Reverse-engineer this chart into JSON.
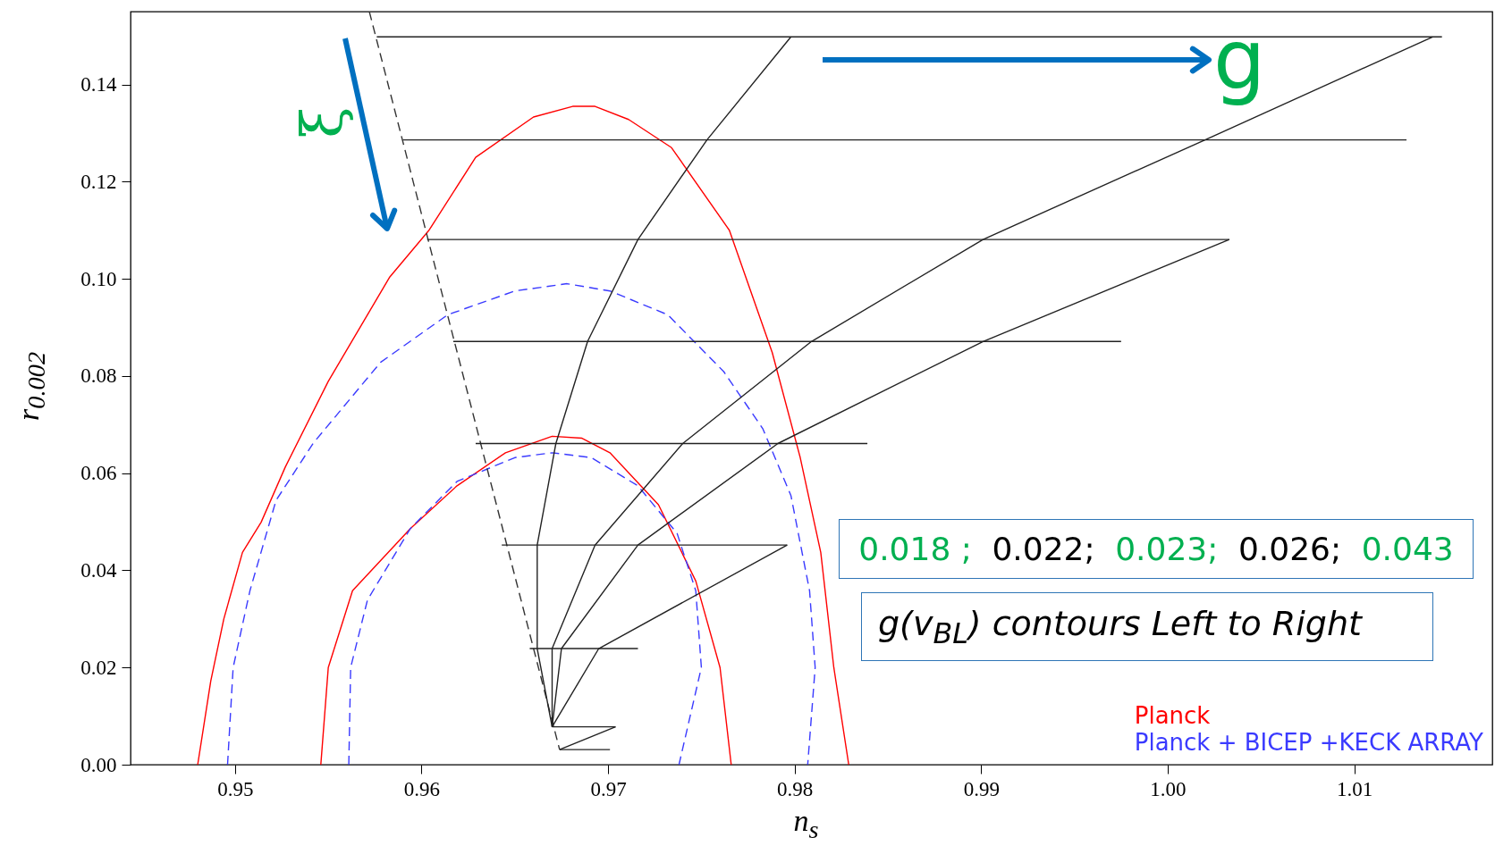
{
  "chart_data": {
    "type": "line",
    "xlabel": "n$_{s}$",
    "ylabel": "r$_{0.002}$",
    "xlim": [
      0.9444,
      1.0174
    ],
    "ylim": [
      0,
      0.155
    ],
    "xticks": [
      0.95,
      0.96,
      0.97,
      0.98,
      0.99,
      {
        "value": 1,
        "label": "1.00"
      },
      1.01
    ],
    "yticks": [
      {
        "value": 0,
        "label": "0.00"
      },
      0.02,
      0.04,
      0.06,
      0.08,
      {
        "value": 0.1,
        "label": "0.10"
      },
      0.12,
      0.14
    ],
    "legend": "bottom right",
    "annotations": [
      "ξ",
      "g",
      "0.018 ;",
      "0.022;",
      "0.023;",
      "0.026;",
      "0.043",
      "g(v$_{BL}$) contours Left to Right"
    ],
    "series": [
      {
        "name": "Planck",
        "color": "#ff0000",
        "line_style": "solid",
        "x": [
          0.948,
          0.9487,
          0.9494,
          0.9504,
          0.9514,
          0.9527,
          0.955,
          0.9583,
          0.9604,
          0.9629,
          0.966,
          0.9681,
          0.9693,
          0.9711,
          0.9734,
          0.9765,
          0.9788,
          0.9803,
          0.9814,
          0.9821,
          0.9829
        ],
        "values": [
          0,
          0.0172,
          0.03,
          0.0437,
          0.0499,
          0.0613,
          0.0789,
          0.1004,
          0.11,
          0.125,
          0.1333,
          0.1355,
          0.1355,
          0.1328,
          0.127,
          0.11,
          0.0848,
          0.0632,
          0.0437,
          0.02,
          0
        ]
      },
      {
        "color": "#ff0000",
        "line_style": "solid",
        "x": [
          0.9546,
          0.955,
          0.9563,
          0.9594,
          0.9619,
          0.9645,
          0.967,
          0.9686,
          0.9701,
          0.9727,
          0.9747,
          0.976,
          0.9766
        ],
        "values": [
          0,
          0.02,
          0.0358,
          0.0486,
          0.0574,
          0.0642,
          0.0676,
          0.0672,
          0.0642,
          0.0535,
          0.0378,
          0.02,
          0
        ]
      },
      {
        "name": "Planck + BICEP +KECK ARRAY",
        "color": "#3a3aff",
        "line_style": "dashed",
        "x": [
          0.9496,
          0.9499,
          0.9508,
          0.9522,
          0.9542,
          0.9578,
          0.9614,
          0.965,
          0.9678,
          0.9701,
          0.9732,
          0.9762,
          0.9783,
          0.9798,
          0.9808,
          0.9811,
          0.9807
        ],
        "values": [
          0,
          0.02,
          0.0358,
          0.0544,
          0.0662,
          0.0828,
          0.0926,
          0.0975,
          0.099,
          0.0975,
          0.0926,
          0.0809,
          0.0691,
          0.0554,
          0.0358,
          0.02,
          0
        ]
      },
      {
        "color": "#3a3aff",
        "line_style": "dashed",
        "x": [
          0.9561,
          0.9562,
          0.9571,
          0.9594,
          0.9619,
          0.965,
          0.967,
          0.9691,
          0.9716,
          0.9737,
          0.9747,
          0.975,
          0.9738
        ],
        "values": [
          0,
          0.02,
          0.0339,
          0.0486,
          0.0583,
          0.0632,
          0.0642,
          0.0632,
          0.0574,
          0.0476,
          0.0358,
          0.02,
          0
        ]
      },
      {
        "color": "#333333",
        "line_style": "dashed",
        "x": [
          0.9572,
          0.9674
        ],
        "values": [
          0.155,
          0.0031
        ]
      },
      {
        "color": "#222222",
        "line_style": "solid",
        "x": [
          0.9576,
          1.0147
        ],
        "values": [
          0.1498,
          0.1498
        ]
      },
      {
        "color": "#222222",
        "line_style": "solid",
        "x": [
          0.959,
          1.0128
        ],
        "values": [
          0.1286,
          0.1286
        ]
      },
      {
        "color": "#222222",
        "line_style": "solid",
        "x": [
          0.9603,
          1.0033
        ],
        "values": [
          0.1081,
          0.1081
        ]
      },
      {
        "color": "#222222",
        "line_style": "solid",
        "x": [
          0.9617,
          0.9975
        ],
        "values": [
          0.0871,
          0.0871
        ]
      },
      {
        "color": "#222222",
        "line_style": "solid",
        "x": [
          0.9629,
          0.9839
        ],
        "values": [
          0.0661,
          0.0661
        ]
      },
      {
        "color": "#222222",
        "line_style": "solid",
        "x": [
          0.9643,
          0.9796
        ],
        "values": [
          0.0452,
          0.0452
        ]
      },
      {
        "color": "#222222",
        "line_style": "solid",
        "x": [
          0.9658,
          0.9716
        ],
        "values": [
          0.0239,
          0.0239
        ]
      },
      {
        "color": "#222222",
        "line_style": "solid",
        "x": [
          0.967,
          0.9704
        ],
        "values": [
          0.0078,
          0.0078
        ]
      },
      {
        "color": "#222222",
        "line_style": "solid",
        "x": [
          0.9674,
          0.9701
        ],
        "values": [
          0.0031,
          0.0031
        ]
      },
      {
        "color": "#222222",
        "line_style": "solid",
        "x": [
          0.9798,
          0.9753,
          0.9716,
          0.9689,
          0.9672,
          0.9662,
          0.9662,
          0.967
        ],
        "values": [
          0.1498,
          0.1286,
          0.1081,
          0.0871,
          0.0661,
          0.0452,
          0.0239,
          0.0078
        ]
      },
      {
        "color": "#222222",
        "line_style": "solid",
        "x": [
          1.0142,
          1.002,
          0.9901,
          0.9809,
          0.974,
          0.9693,
          0.967,
          0.967
        ],
        "values": [
          0.1498,
          0.1286,
          0.1081,
          0.0871,
          0.0661,
          0.0452,
          0.0239,
          0.0078
        ]
      },
      {
        "color": "#222222",
        "line_style": "solid",
        "x": [
          1.0033,
          0.9901,
          0.9791,
          0.9716,
          0.9675,
          0.967
        ],
        "values": [
          0.1081,
          0.0871,
          0.0661,
          0.0452,
          0.0239,
          0.0078
        ]
      },
      {
        "color": "#222222",
        "line_style": "solid",
        "x": [
          0.9796,
          0.9695,
          0.967
        ],
        "values": [
          0.0452,
          0.0239,
          0.0078
        ]
      },
      {
        "color": "#222222",
        "line_style": "solid",
        "x": [
          0.9704,
          0.9674
        ],
        "values": [
          0.0078,
          0.0031
        ]
      }
    ]
  }
}
